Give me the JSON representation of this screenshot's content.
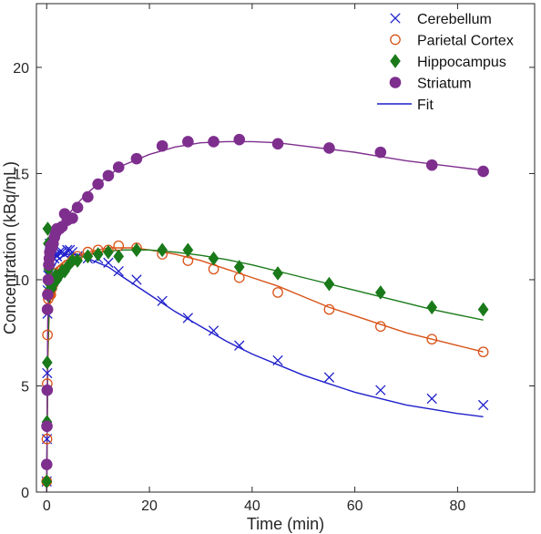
{
  "chart_data": {
    "type": "scatter",
    "xlabel": "Time (min)",
    "ylabel": "Concentration (kBq/mL)",
    "xlim": [
      -2,
      95
    ],
    "ylim": [
      0,
      23
    ],
    "xticks": [
      0,
      20,
      40,
      60,
      80
    ],
    "yticks": [
      0,
      5,
      10,
      15,
      20
    ],
    "grid": false,
    "box": true,
    "legend_position": "top-right",
    "legend_fit_label": "Fit",
    "fit_color": "#1f1fcc",
    "series": [
      {
        "name": "Cerebellum",
        "marker": "x",
        "color": "#1f1fcc",
        "x": [
          0,
          0.05,
          0.1,
          0.15,
          0.2,
          0.3,
          0.4,
          0.5,
          0.6,
          0.7,
          0.8,
          0.9,
          1.0,
          1.25,
          1.5,
          1.75,
          2,
          2.5,
          3,
          3.5,
          4,
          4.5,
          5,
          6,
          8,
          10,
          12,
          14,
          17.5,
          22.5,
          27.5,
          32.5,
          37.5,
          45,
          55,
          65,
          75,
          85
        ],
        "y": [
          0.5,
          2.5,
          5.6,
          8.4,
          9.5,
          10.2,
          10.8,
          11.0,
          11.7,
          11.6,
          11.4,
          11.3,
          11.1,
          11.3,
          11.0,
          11.2,
          11.1,
          11.3,
          11.3,
          11.2,
          11.4,
          11.4,
          11.3,
          11.1,
          11.0,
          11.0,
          10.8,
          10.4,
          10.0,
          9.0,
          8.2,
          7.6,
          6.9,
          6.2,
          5.4,
          4.8,
          4.4,
          4.1
        ],
        "fit_x": [
          0,
          0.2,
          0.5,
          1,
          2,
          3,
          4,
          5,
          6,
          7,
          8,
          9,
          10,
          12,
          15,
          20,
          25,
          30,
          35,
          40,
          45,
          50,
          55,
          60,
          65,
          70,
          75,
          80,
          85
        ],
        "fit_y": [
          0,
          7.0,
          9.6,
          10.4,
          10.9,
          11.1,
          11.2,
          11.2,
          11.2,
          11.1,
          11.0,
          10.9,
          10.8,
          10.6,
          10.1,
          9.3,
          8.5,
          7.8,
          7.1,
          6.5,
          6.0,
          5.5,
          5.1,
          4.7,
          4.4,
          4.1,
          3.9,
          3.7,
          3.55
        ]
      },
      {
        "name": "Parietal Cortex",
        "marker": "o",
        "color": "#d95319",
        "x": [
          0,
          0.05,
          0.1,
          0.15,
          0.2,
          0.3,
          0.4,
          0.5,
          0.6,
          0.8,
          1.0,
          1.25,
          1.5,
          1.75,
          2,
          2.5,
          3,
          3.5,
          4,
          5,
          6,
          8,
          10,
          12,
          14,
          17.5,
          22.5,
          27.5,
          32.5,
          37.5,
          45,
          55,
          65,
          75,
          85
        ],
        "y": [
          0.5,
          2.5,
          5.1,
          7.4,
          8.6,
          9.1,
          9.4,
          9.3,
          9.3,
          9.3,
          9.6,
          9.8,
          10.0,
          10.3,
          10.1,
          10.4,
          10.5,
          10.6,
          10.7,
          10.9,
          11.1,
          11.3,
          11.4,
          11.4,
          11.6,
          11.5,
          11.2,
          10.9,
          10.5,
          10.1,
          9.4,
          8.6,
          7.8,
          7.2,
          6.6
        ],
        "fit_x": [
          0,
          0.2,
          0.5,
          1,
          2,
          3,
          4,
          5,
          6,
          8,
          10,
          12,
          15,
          17,
          20,
          25,
          30,
          35,
          40,
          45,
          50,
          55,
          60,
          65,
          70,
          75,
          80,
          85
        ],
        "fit_y": [
          0,
          6.0,
          8.6,
          9.5,
          10.1,
          10.5,
          10.8,
          11.0,
          11.1,
          11.3,
          11.4,
          11.5,
          11.5,
          11.5,
          11.4,
          11.2,
          10.9,
          10.5,
          10.1,
          9.7,
          9.2,
          8.7,
          8.3,
          7.9,
          7.5,
          7.2,
          6.9,
          6.6
        ]
      },
      {
        "name": "Hippocampus",
        "marker": "d",
        "color": "#1a7a1a",
        "x": [
          0,
          0.05,
          0.1,
          0.15,
          0.2,
          0.3,
          0.4,
          0.5,
          0.6,
          0.8,
          1.0,
          1.25,
          1.5,
          1.75,
          2,
          2.5,
          3,
          3.5,
          4,
          5,
          6,
          8,
          10,
          12,
          14,
          17.5,
          22.5,
          27.5,
          32.5,
          37.5,
          45,
          55,
          65,
          75,
          85
        ],
        "y": [
          0.5,
          3.3,
          6.1,
          9.3,
          12.4,
          11.7,
          10.5,
          10.0,
          9.8,
          9.6,
          9.6,
          9.8,
          9.9,
          10.2,
          10.0,
          10.2,
          10.4,
          10.4,
          10.6,
          10.9,
          10.9,
          11.1,
          11.2,
          11.3,
          11.1,
          11.4,
          11.4,
          11.4,
          11.0,
          10.6,
          10.3,
          9.8,
          9.4,
          8.7,
          8.6
        ],
        "fit_x": [
          0,
          0.2,
          0.5,
          1,
          2,
          3,
          4,
          5,
          6,
          8,
          10,
          12,
          15,
          20,
          25,
          30,
          35,
          40,
          45,
          50,
          55,
          60,
          65,
          70,
          75,
          80,
          85
        ],
        "fit_y": [
          0,
          6.5,
          8.9,
          9.7,
          10.2,
          10.5,
          10.7,
          10.9,
          11.0,
          11.2,
          11.3,
          11.35,
          11.4,
          11.4,
          11.3,
          11.15,
          10.95,
          10.7,
          10.4,
          10.1,
          9.8,
          9.5,
          9.2,
          8.9,
          8.6,
          8.35,
          8.1
        ]
      },
      {
        "name": "Striatum",
        "marker": "o-filled",
        "color": "#7e2f8e",
        "x": [
          0,
          0.05,
          0.1,
          0.15,
          0.2,
          0.3,
          0.4,
          0.5,
          0.6,
          0.8,
          1.0,
          1.25,
          1.5,
          1.75,
          2,
          2.5,
          3,
          3.5,
          4,
          5,
          6,
          8,
          10,
          12,
          14,
          17.5,
          22.5,
          27.5,
          32.5,
          37.5,
          45,
          55,
          65,
          75,
          85
        ],
        "y": [
          1.3,
          3.1,
          4.8,
          8.6,
          9.3,
          10.0,
          10.7,
          11.0,
          11.3,
          11.6,
          11.5,
          11.7,
          12.0,
          12.2,
          12.4,
          12.4,
          12.5,
          13.1,
          12.8,
          12.9,
          13.4,
          13.9,
          14.5,
          14.9,
          15.3,
          15.7,
          16.3,
          16.5,
          16.5,
          16.6,
          16.4,
          16.2,
          16.0,
          15.4,
          15.1
        ],
        "fit_x": [
          0,
          0.2,
          0.5,
          1,
          2,
          3,
          4,
          5,
          6,
          8,
          10,
          12,
          15,
          20,
          25,
          30,
          35,
          40,
          45,
          50,
          55,
          60,
          65,
          70,
          75,
          80,
          85
        ],
        "fit_y": [
          0,
          8.0,
          10.3,
          11.3,
          12.1,
          12.6,
          13.0,
          13.3,
          13.6,
          14.1,
          14.5,
          14.9,
          15.4,
          15.9,
          16.25,
          16.45,
          16.5,
          16.5,
          16.45,
          16.3,
          16.15,
          16.0,
          15.8,
          15.6,
          15.45,
          15.3,
          15.15
        ]
      }
    ]
  }
}
